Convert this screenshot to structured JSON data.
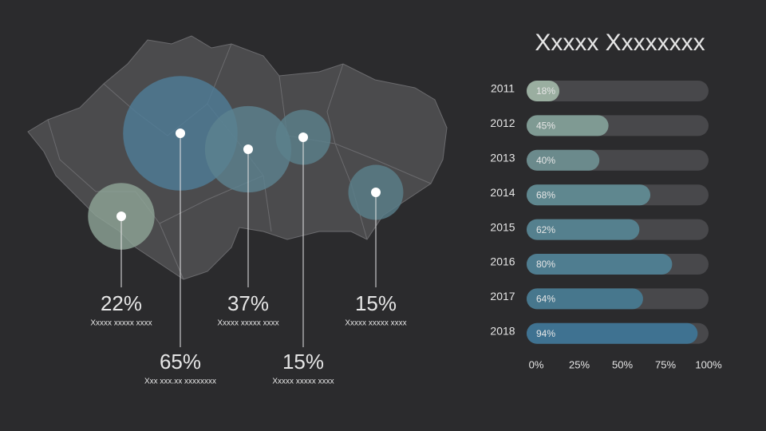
{
  "chart_data": [
    {
      "type": "bar",
      "title": "Xxxxx Xxxxxxxx",
      "categories": [
        "2011",
        "2012",
        "2013",
        "2014",
        "2015",
        "2016",
        "2017",
        "2018"
      ],
      "values": [
        18,
        45,
        40,
        68,
        62,
        80,
        64,
        94
      ],
      "value_labels": [
        "18%",
        "45%",
        "40%",
        "68%",
        "62%",
        "80%",
        "64%",
        "94%"
      ],
      "colors": [
        "#9aaea0",
        "#7f9a93",
        "#6b8a8c",
        "#5f878f",
        "#55808e",
        "#4f7d90",
        "#47778d",
        "#3f7291"
      ],
      "track_color": "#48484b",
      "xlim": [
        0,
        100
      ],
      "xticks": [
        {
          "value": 0,
          "label": "0%"
        },
        {
          "value": 25,
          "label": "25%"
        },
        {
          "value": 50,
          "label": "50%"
        },
        {
          "value": 75,
          "label": "75%"
        },
        {
          "value": 100,
          "label": "100%"
        }
      ]
    },
    {
      "type": "bubble-map",
      "values": [
        22,
        37,
        15,
        65,
        15
      ],
      "value_labels": [
        "22%",
        "37%",
        "15%",
        "65%",
        "15%"
      ],
      "captions": [
        "Xxxxx xxxxx xxxx",
        "Xxxxx xxxxx xxxx",
        "Xxxxx xxxxx xxxx",
        "Xxx xxx.xx xxxxxxxx",
        "Xxxxx xxxxx xxxx"
      ],
      "colors": [
        "#8fa597",
        "#5c8290",
        "#5a7f8b",
        "#4f7d98",
        "#5b818c"
      ]
    }
  ]
}
